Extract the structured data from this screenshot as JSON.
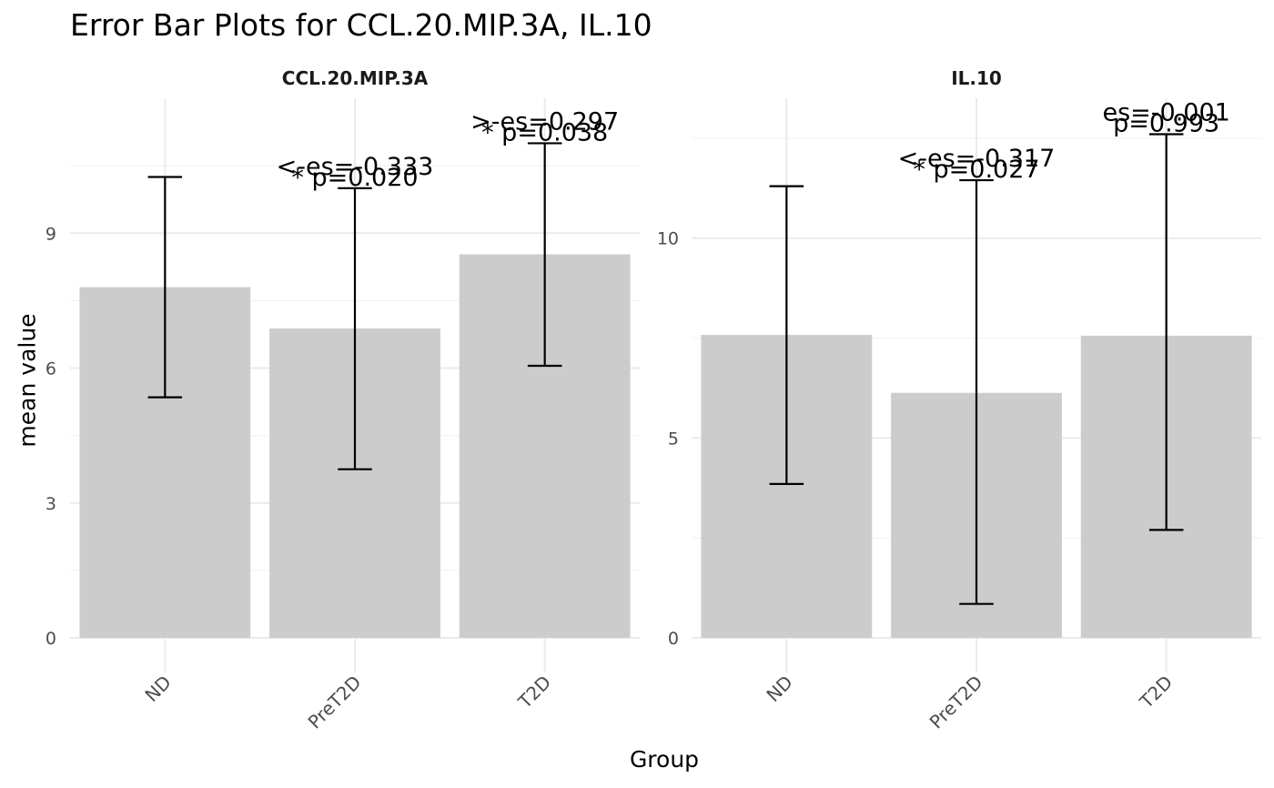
{
  "chart_data": {
    "type": "bar",
    "title": "Error Bar Plots for CCL.20.MIP.3A, IL.10",
    "xlabel": "Group",
    "ylabel": "mean value",
    "grid": true,
    "legend": "none",
    "colors": {
      "bar": "#cccccc",
      "error": "#000000",
      "grid_major": "#ebebeb",
      "grid_minor": "#f3f3f3"
    },
    "panels": [
      {
        "name": "CCL.20.MIP.3A",
        "categories": [
          "ND",
          "PreT2D",
          "T2D"
        ],
        "values": [
          7.8,
          6.88,
          8.53
        ],
        "error_low": [
          5.35,
          3.75,
          6.05
        ],
        "error_high": [
          10.25,
          10.0,
          11.0
        ],
        "ylim": [
          0,
          12
        ],
        "yticks": [
          0,
          3,
          6,
          9
        ],
        "annotations": [
          {
            "category": "PreT2D",
            "es": "<-es=-0.333",
            "p": "* p=0.020"
          },
          {
            "category": "T2D",
            "es": ">-es=0.297",
            "p": "* p=0.038"
          }
        ]
      },
      {
        "name": "IL.10",
        "categories": [
          "ND",
          "PreT2D",
          "T2D"
        ],
        "values": [
          7.58,
          6.13,
          7.56
        ],
        "error_low": [
          3.85,
          0.85,
          2.7
        ],
        "error_high": [
          11.3,
          11.45,
          12.6
        ],
        "ylim": [
          0,
          13.5
        ],
        "yticks": [
          0,
          5,
          10
        ],
        "annotations": [
          {
            "category": "PreT2D",
            "es": "<-es=-0.317",
            "p": "* p=0.027"
          },
          {
            "category": "T2D",
            "es": "es=-0.001",
            "p": "p=0.993"
          }
        ]
      }
    ]
  }
}
